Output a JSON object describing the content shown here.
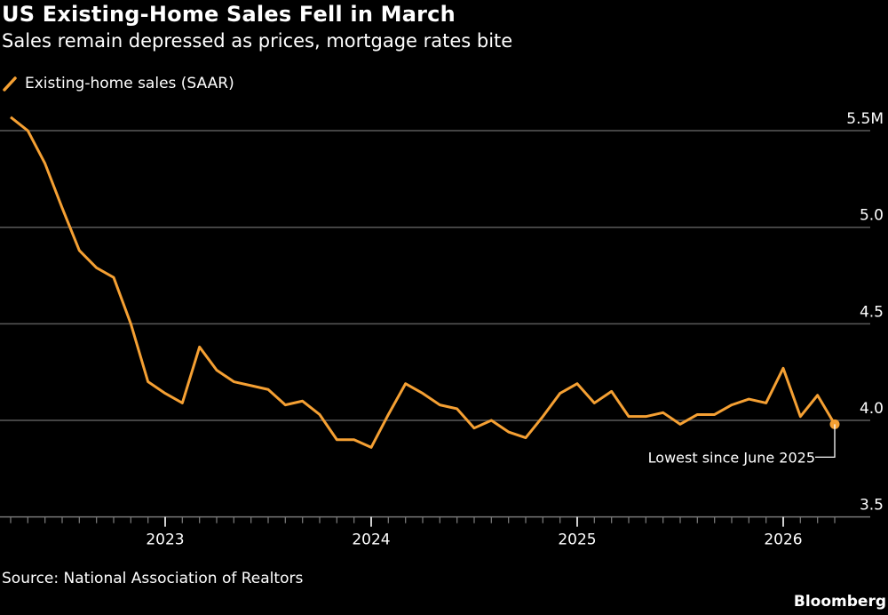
{
  "header": {
    "title": "US Existing-Home Sales Fell in March",
    "subtitle": "Sales remain depressed as prices, mortgage rates bite"
  },
  "footer": {
    "source": "Source: National Association of Realtors",
    "logo": "Bloomberg"
  },
  "chart_data": {
    "type": "line",
    "title": "US Existing-Home Sales Fell in March",
    "subtitle": "Sales remain depressed as prices, mortgage rates bite",
    "xlabel": "",
    "ylabel": "",
    "legend_position": "top-left",
    "grid": true,
    "colors": {
      "line": "#f5a033",
      "grid": "#5a5a5a",
      "background": "#000000",
      "text": "#ffffff"
    },
    "ylim": [
      3.5,
      5.5
    ],
    "yticks": [
      {
        "value": 5.5,
        "label": "5.5M"
      },
      {
        "value": 5.0,
        "label": "5.0"
      },
      {
        "value": 4.5,
        "label": "4.5"
      },
      {
        "value": 4.0,
        "label": "4.0"
      },
      {
        "value": 3.5,
        "label": "3.5"
      }
    ],
    "xticks": [
      "2023",
      "2024",
      "2025",
      "2026"
    ],
    "series": [
      {
        "name": "Existing-home sales (SAAR)",
        "x": [
          "2022-03",
          "2022-04",
          "2022-05",
          "2022-06",
          "2022-07",
          "2022-08",
          "2022-09",
          "2022-10",
          "2022-11",
          "2022-12",
          "2023-01",
          "2023-02",
          "2023-03",
          "2023-04",
          "2023-05",
          "2023-06",
          "2023-07",
          "2023-08",
          "2023-09",
          "2023-10",
          "2023-11",
          "2023-12",
          "2024-01",
          "2024-02",
          "2024-03",
          "2024-04",
          "2024-05",
          "2024-06",
          "2024-07",
          "2024-08",
          "2024-09",
          "2024-10",
          "2024-11",
          "2024-12",
          "2025-01",
          "2025-02",
          "2025-03",
          "2025-04",
          "2025-05",
          "2025-06",
          "2025-07",
          "2025-08",
          "2025-09",
          "2025-10",
          "2025-11",
          "2025-12",
          "2026-01",
          "2026-02",
          "2026-03"
        ],
        "values": [
          5.57,
          5.5,
          5.33,
          5.1,
          4.88,
          4.79,
          4.74,
          4.5,
          4.2,
          4.14,
          4.09,
          4.38,
          4.26,
          4.2,
          4.18,
          4.16,
          4.08,
          4.1,
          4.03,
          3.9,
          3.9,
          3.86,
          4.03,
          4.19,
          4.14,
          4.08,
          4.06,
          3.96,
          4.0,
          3.94,
          3.91,
          4.02,
          4.14,
          4.19,
          4.09,
          4.15,
          4.02,
          4.02,
          4.04,
          3.98,
          4.03,
          4.03,
          4.08,
          4.11,
          4.09,
          4.27,
          4.02,
          4.13,
          3.98
        ]
      }
    ],
    "annotations": [
      {
        "x": "2026-03",
        "value": 3.98,
        "text": "Lowest since June 2025"
      }
    ]
  }
}
